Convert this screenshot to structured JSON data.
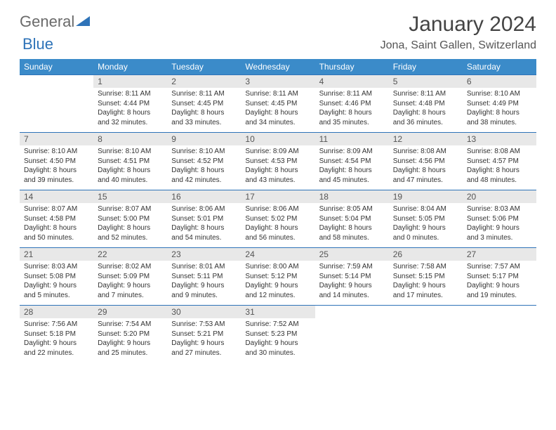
{
  "brand": {
    "part1": "General",
    "part2": "Blue"
  },
  "title": "January 2024",
  "location": "Jona, Saint Gallen, Switzerland",
  "colors": {
    "header_bg": "#3b8bc9",
    "header_text": "#ffffff",
    "border": "#2e73b8",
    "daynum_bg": "#e8e8e8",
    "text": "#333333",
    "logo_gray": "#6a6a6a",
    "logo_blue": "#2e73b8"
  },
  "weekdays": [
    "Sunday",
    "Monday",
    "Tuesday",
    "Wednesday",
    "Thursday",
    "Friday",
    "Saturday"
  ],
  "grid": [
    [
      {
        "empty": true
      },
      {
        "n": "1",
        "sr": "Sunrise: 8:11 AM",
        "ss": "Sunset: 4:44 PM",
        "d1": "Daylight: 8 hours",
        "d2": "and 32 minutes."
      },
      {
        "n": "2",
        "sr": "Sunrise: 8:11 AM",
        "ss": "Sunset: 4:45 PM",
        "d1": "Daylight: 8 hours",
        "d2": "and 33 minutes."
      },
      {
        "n": "3",
        "sr": "Sunrise: 8:11 AM",
        "ss": "Sunset: 4:45 PM",
        "d1": "Daylight: 8 hours",
        "d2": "and 34 minutes."
      },
      {
        "n": "4",
        "sr": "Sunrise: 8:11 AM",
        "ss": "Sunset: 4:46 PM",
        "d1": "Daylight: 8 hours",
        "d2": "and 35 minutes."
      },
      {
        "n": "5",
        "sr": "Sunrise: 8:11 AM",
        "ss": "Sunset: 4:48 PM",
        "d1": "Daylight: 8 hours",
        "d2": "and 36 minutes."
      },
      {
        "n": "6",
        "sr": "Sunrise: 8:10 AM",
        "ss": "Sunset: 4:49 PM",
        "d1": "Daylight: 8 hours",
        "d2": "and 38 minutes."
      }
    ],
    [
      {
        "n": "7",
        "sr": "Sunrise: 8:10 AM",
        "ss": "Sunset: 4:50 PM",
        "d1": "Daylight: 8 hours",
        "d2": "and 39 minutes."
      },
      {
        "n": "8",
        "sr": "Sunrise: 8:10 AM",
        "ss": "Sunset: 4:51 PM",
        "d1": "Daylight: 8 hours",
        "d2": "and 40 minutes."
      },
      {
        "n": "9",
        "sr": "Sunrise: 8:10 AM",
        "ss": "Sunset: 4:52 PM",
        "d1": "Daylight: 8 hours",
        "d2": "and 42 minutes."
      },
      {
        "n": "10",
        "sr": "Sunrise: 8:09 AM",
        "ss": "Sunset: 4:53 PM",
        "d1": "Daylight: 8 hours",
        "d2": "and 43 minutes."
      },
      {
        "n": "11",
        "sr": "Sunrise: 8:09 AM",
        "ss": "Sunset: 4:54 PM",
        "d1": "Daylight: 8 hours",
        "d2": "and 45 minutes."
      },
      {
        "n": "12",
        "sr": "Sunrise: 8:08 AM",
        "ss": "Sunset: 4:56 PM",
        "d1": "Daylight: 8 hours",
        "d2": "and 47 minutes."
      },
      {
        "n": "13",
        "sr": "Sunrise: 8:08 AM",
        "ss": "Sunset: 4:57 PM",
        "d1": "Daylight: 8 hours",
        "d2": "and 48 minutes."
      }
    ],
    [
      {
        "n": "14",
        "sr": "Sunrise: 8:07 AM",
        "ss": "Sunset: 4:58 PM",
        "d1": "Daylight: 8 hours",
        "d2": "and 50 minutes."
      },
      {
        "n": "15",
        "sr": "Sunrise: 8:07 AM",
        "ss": "Sunset: 5:00 PM",
        "d1": "Daylight: 8 hours",
        "d2": "and 52 minutes."
      },
      {
        "n": "16",
        "sr": "Sunrise: 8:06 AM",
        "ss": "Sunset: 5:01 PM",
        "d1": "Daylight: 8 hours",
        "d2": "and 54 minutes."
      },
      {
        "n": "17",
        "sr": "Sunrise: 8:06 AM",
        "ss": "Sunset: 5:02 PM",
        "d1": "Daylight: 8 hours",
        "d2": "and 56 minutes."
      },
      {
        "n": "18",
        "sr": "Sunrise: 8:05 AM",
        "ss": "Sunset: 5:04 PM",
        "d1": "Daylight: 8 hours",
        "d2": "and 58 minutes."
      },
      {
        "n": "19",
        "sr": "Sunrise: 8:04 AM",
        "ss": "Sunset: 5:05 PM",
        "d1": "Daylight: 9 hours",
        "d2": "and 0 minutes."
      },
      {
        "n": "20",
        "sr": "Sunrise: 8:03 AM",
        "ss": "Sunset: 5:06 PM",
        "d1": "Daylight: 9 hours",
        "d2": "and 3 minutes."
      }
    ],
    [
      {
        "n": "21",
        "sr": "Sunrise: 8:03 AM",
        "ss": "Sunset: 5:08 PM",
        "d1": "Daylight: 9 hours",
        "d2": "and 5 minutes."
      },
      {
        "n": "22",
        "sr": "Sunrise: 8:02 AM",
        "ss": "Sunset: 5:09 PM",
        "d1": "Daylight: 9 hours",
        "d2": "and 7 minutes."
      },
      {
        "n": "23",
        "sr": "Sunrise: 8:01 AM",
        "ss": "Sunset: 5:11 PM",
        "d1": "Daylight: 9 hours",
        "d2": "and 9 minutes."
      },
      {
        "n": "24",
        "sr": "Sunrise: 8:00 AM",
        "ss": "Sunset: 5:12 PM",
        "d1": "Daylight: 9 hours",
        "d2": "and 12 minutes."
      },
      {
        "n": "25",
        "sr": "Sunrise: 7:59 AM",
        "ss": "Sunset: 5:14 PM",
        "d1": "Daylight: 9 hours",
        "d2": "and 14 minutes."
      },
      {
        "n": "26",
        "sr": "Sunrise: 7:58 AM",
        "ss": "Sunset: 5:15 PM",
        "d1": "Daylight: 9 hours",
        "d2": "and 17 minutes."
      },
      {
        "n": "27",
        "sr": "Sunrise: 7:57 AM",
        "ss": "Sunset: 5:17 PM",
        "d1": "Daylight: 9 hours",
        "d2": "and 19 minutes."
      }
    ],
    [
      {
        "n": "28",
        "sr": "Sunrise: 7:56 AM",
        "ss": "Sunset: 5:18 PM",
        "d1": "Daylight: 9 hours",
        "d2": "and 22 minutes."
      },
      {
        "n": "29",
        "sr": "Sunrise: 7:54 AM",
        "ss": "Sunset: 5:20 PM",
        "d1": "Daylight: 9 hours",
        "d2": "and 25 minutes."
      },
      {
        "n": "30",
        "sr": "Sunrise: 7:53 AM",
        "ss": "Sunset: 5:21 PM",
        "d1": "Daylight: 9 hours",
        "d2": "and 27 minutes."
      },
      {
        "n": "31",
        "sr": "Sunrise: 7:52 AM",
        "ss": "Sunset: 5:23 PM",
        "d1": "Daylight: 9 hours",
        "d2": "and 30 minutes."
      },
      {
        "empty": true
      },
      {
        "empty": true
      },
      {
        "empty": true
      }
    ]
  ]
}
